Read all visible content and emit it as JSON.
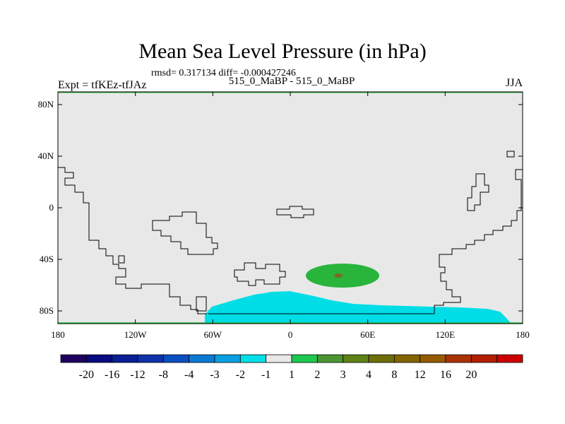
{
  "title": "Mean Sea Level Pressure (in hPa)",
  "stats": "rmsd= 0.317134 diff= -0.000427246",
  "expt": "Expt = tfKEz-tfJAz",
  "period": "515_0_MaBP - 515_0_MaBP",
  "season": "JJA",
  "map": {
    "background": "#e8e8e8",
    "lon_range": [
      -180,
      180
    ],
    "lat_range": [
      -90,
      90
    ],
    "x_ticks": [
      "180",
      "120W",
      "60W",
      "0",
      "60E",
      "120E",
      "180"
    ],
    "y_ticks": [
      "80N",
      "40N",
      "0",
      "40S",
      "80S"
    ]
  },
  "colorbar": {
    "colors": [
      "#1f005f",
      "#0a0a80",
      "#0a1e96",
      "#0f32aa",
      "#0a50c0",
      "#0a7ad4",
      "#0aa0e0",
      "#00e0e8",
      "#e8e8e8",
      "#1ec850",
      "#4b9632",
      "#5f8214",
      "#6e6e0a",
      "#826400",
      "#965a00",
      "#aa3200",
      "#b41e00",
      "#cc0000"
    ],
    "labels": [
      "-20",
      "-16",
      "-12",
      "-8",
      "-4",
      "-3",
      "-2",
      "-1",
      "1",
      "2",
      "3",
      "4",
      "8",
      "12",
      "16",
      "20"
    ],
    "anomaly_colors": {
      "negative": "#00dde6",
      "positive": "#29b43b",
      "core": "#7a6a22"
    }
  }
}
